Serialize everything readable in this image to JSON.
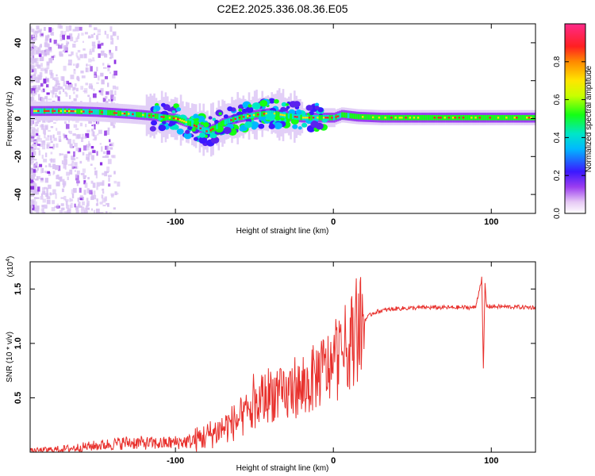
{
  "title": "C2E2.2025.336.08.36.E05",
  "chart_data": [
    {
      "type": "heatmap",
      "xlabel": "Height of straight line (km)",
      "ylabel": "Frequency (Hz)",
      "xlim": [
        -192,
        128
      ],
      "ylim": [
        -50,
        50
      ],
      "xticks": [
        -100,
        0,
        100
      ],
      "yticks": [
        -40,
        -20,
        0,
        20,
        40
      ],
      "colorbar": {
        "label": "Normalized spectral amplitude",
        "range": [
          0,
          1
        ],
        "ticks": [
          0.0,
          0.2,
          0.4,
          0.6,
          0.8
        ]
      },
      "ridge": {
        "x": [
          -192,
          -170,
          -150,
          -130,
          -115,
          -100,
          -90,
          -80,
          -70,
          -60,
          -50,
          -40,
          -30,
          -20,
          -10,
          0,
          5,
          15,
          30,
          60,
          92,
          128
        ],
        "frequency": [
          4,
          4,
          3.5,
          2.5,
          1.5,
          0,
          -3,
          -7,
          -2,
          0.5,
          2,
          3,
          1.5,
          0.5,
          0.5,
          0.5,
          2,
          1,
          0.5,
          0.5,
          0.5,
          0.5
        ]
      }
    },
    {
      "type": "line",
      "xlabel": "Height of straight line (km)",
      "ylabel": "SNR (10 * v/v)",
      "y_multiplier": "(x10",
      "y_multiplier_exp": "4",
      "y_multiplier_close": ")",
      "xlim": [
        -192,
        128
      ],
      "ylim": [
        0,
        1.75
      ],
      "xticks": [
        -100,
        0,
        100
      ],
      "yticks": [
        0.5,
        1.0,
        1.5
      ],
      "line_color": "#e8302c",
      "series": [
        {
          "x": [
            -192,
            -170,
            -150,
            -130,
            -110,
            -90,
            -80,
            -70,
            -60,
            -50,
            -40,
            -30,
            -25,
            -20,
            -10,
            0,
            5,
            10,
            15,
            20,
            25,
            30,
            40,
            60,
            80,
            90,
            94,
            95,
            96,
            97,
            100,
            128
          ],
          "values": [
            0.01,
            0.03,
            0.06,
            0.09,
            0.08,
            0.1,
            0.15,
            0.22,
            0.3,
            0.4,
            0.55,
            0.5,
            0.62,
            0.55,
            0.72,
            0.8,
            0.9,
            1.0,
            1.1,
            1.22,
            1.28,
            1.3,
            1.32,
            1.33,
            1.33,
            1.33,
            1.6,
            0.75,
            1.55,
            1.34,
            1.34,
            1.33
          ]
        }
      ]
    }
  ],
  "icons": {
    "colormap": "rainbow-colorbar"
  }
}
